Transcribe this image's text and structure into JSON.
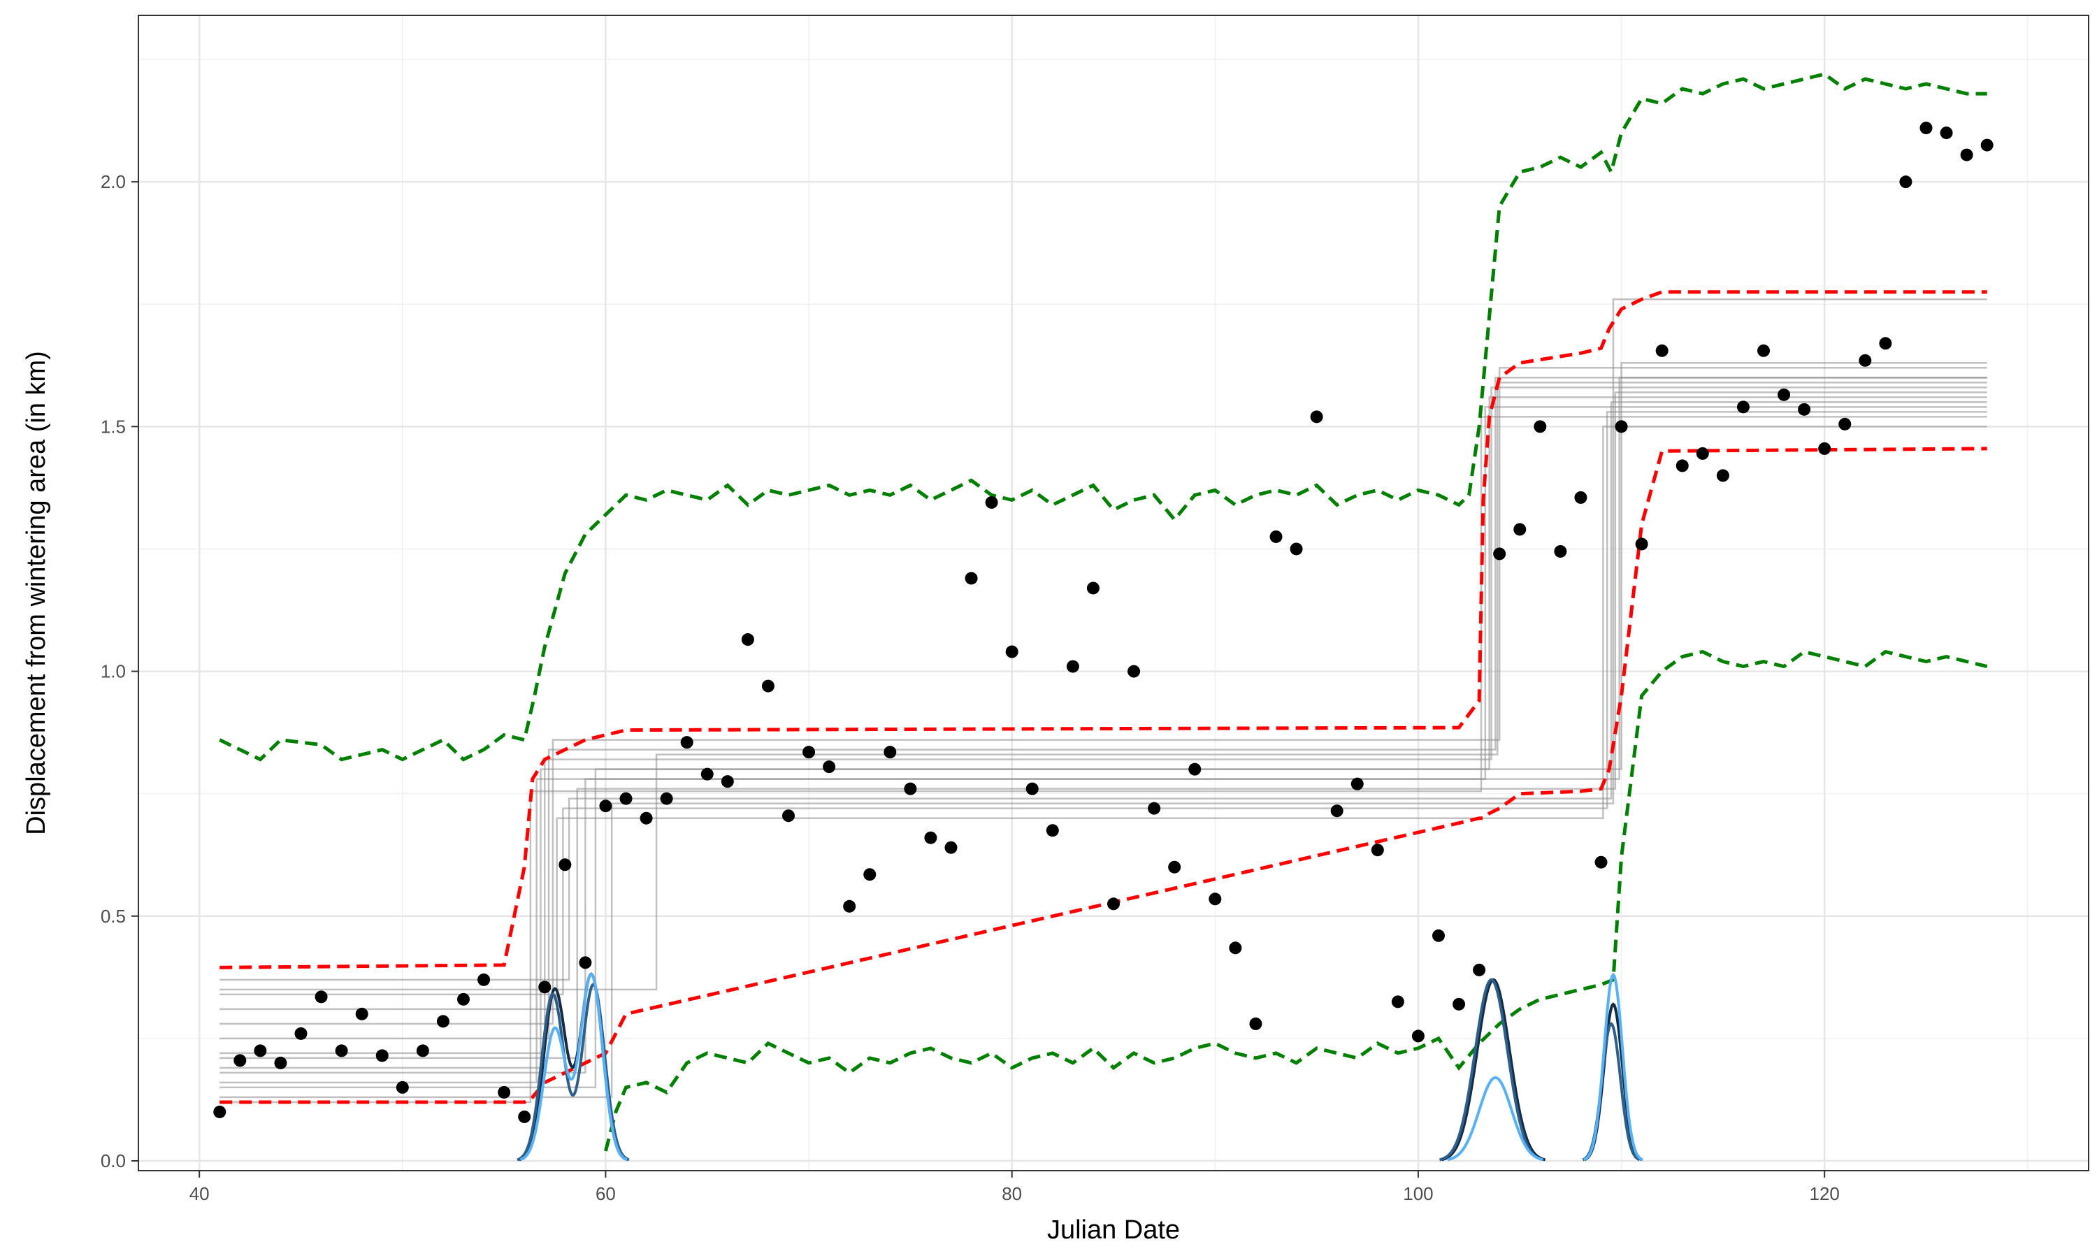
{
  "chart_data": {
    "type": "scatter",
    "xlabel": "Julian Date",
    "ylabel": "Displacement from wintering area (in km)",
    "xlim": [
      37,
      133
    ],
    "ylim": [
      -0.02,
      2.34
    ],
    "x_ticks": [
      40,
      60,
      80,
      100,
      120
    ],
    "y_ticks": [
      0.0,
      0.5,
      1.0,
      1.5,
      2.0
    ],
    "x_tick_labels": [
      "40",
      "60",
      "80",
      "100",
      "120"
    ],
    "y_tick_labels": [
      "0.0",
      "0.5",
      "1.0",
      "1.5",
      "2.0"
    ],
    "grid": true,
    "theme": "bw",
    "points": {
      "x": [
        41,
        42,
        43,
        44,
        45,
        46,
        47,
        48,
        49,
        50,
        51,
        52,
        53,
        54,
        55,
        56,
        57,
        58,
        59,
        60,
        61,
        62,
        63,
        64,
        65,
        66,
        67,
        68,
        69,
        70,
        71,
        72,
        73,
        74,
        75,
        76,
        77,
        78,
        79,
        80,
        81,
        82,
        83,
        84,
        85,
        86,
        87,
        88,
        89,
        90,
        91,
        92,
        93,
        94,
        95,
        96,
        97,
        98,
        99,
        100,
        101,
        102,
        103,
        104,
        105,
        106,
        107,
        108,
        109,
        110,
        111,
        112,
        113,
        114,
        115,
        116,
        117,
        118,
        119,
        120,
        121,
        122,
        123,
        124,
        125,
        126,
        127,
        128
      ],
      "y": [
        0.1,
        0.205,
        0.225,
        0.2,
        0.26,
        0.335,
        0.225,
        0.3,
        0.215,
        0.15,
        0.225,
        0.285,
        0.33,
        0.37,
        0.14,
        0.09,
        0.355,
        0.605,
        0.405,
        0.725,
        0.74,
        0.7,
        0.74,
        0.855,
        0.79,
        0.775,
        1.065,
        0.97,
        0.705,
        0.835,
        0.805,
        0.52,
        0.585,
        0.835,
        0.76,
        0.66,
        0.64,
        1.19,
        1.345,
        1.04,
        0.76,
        0.675,
        1.01,
        1.17,
        0.525,
        1.0,
        0.72,
        0.6,
        0.8,
        0.535,
        0.435,
        0.28,
        1.275,
        1.25,
        1.52,
        0.715,
        0.77,
        0.635,
        0.325,
        0.255,
        0.46,
        0.32,
        0.39,
        1.24,
        1.29,
        1.5,
        1.245,
        1.355,
        0.61,
        1.5,
        1.26,
        1.655,
        1.42,
        1.445,
        1.4,
        1.54,
        1.655,
        1.565,
        1.535,
        1.455,
        1.505,
        1.635,
        1.67,
        2.0,
        2.11,
        2.1,
        2.055,
        2.075
      ],
      "color": "#000000"
    },
    "step_fits": {
      "color": "#8c8c8c",
      "x_range": [
        41,
        128
      ],
      "lines": [
        [
          0.12,
          56.3,
          0.755,
          103.1,
          1.52
        ],
        [
          0.16,
          56.6,
          0.78,
          103.3,
          1.54
        ],
        [
          0.19,
          56.8,
          0.8,
          103.5,
          1.56
        ],
        [
          0.22,
          57.0,
          0.82,
          103.6,
          1.58
        ],
        [
          0.25,
          57.2,
          0.84,
          103.8,
          1.6
        ],
        [
          0.28,
          57.4,
          0.86,
          104.0,
          1.62
        ],
        [
          0.31,
          57.6,
          0.7,
          109.1,
          1.5
        ],
        [
          0.34,
          57.9,
          0.72,
          109.3,
          1.53
        ],
        [
          0.37,
          58.2,
          0.74,
          109.5,
          1.55
        ],
        [
          0.21,
          58.6,
          0.76,
          109.7,
          1.57
        ],
        [
          0.18,
          59.0,
          0.78,
          109.9,
          1.6
        ],
        [
          0.15,
          59.5,
          0.8,
          110.0,
          1.63
        ],
        [
          0.13,
          60.3,
          0.73,
          109.6,
          1.76
        ],
        [
          0.35,
          62.5,
          0.83,
          103.9,
          1.59
        ]
      ]
    },
    "red_band": {
      "color": "#ff0000",
      "x": [
        41,
        55,
        56,
        56.4,
        57,
        58,
        59,
        60,
        61,
        102,
        103,
        103.2,
        103.5,
        104,
        105,
        108,
        109,
        109.4,
        110,
        111,
        112,
        128
      ],
      "upper": [
        0.395,
        0.4,
        0.6,
        0.78,
        0.82,
        0.84,
        0.86,
        0.87,
        0.88,
        0.885,
        0.94,
        1.35,
        1.52,
        1.6,
        1.63,
        1.65,
        1.66,
        1.7,
        1.74,
        1.76,
        1.775,
        1.775
      ],
      "lower": [
        0.12,
        0.12,
        0.12,
        0.13,
        0.16,
        0.18,
        0.2,
        0.22,
        0.3,
        0.69,
        0.7,
        0.7,
        0.71,
        0.72,
        0.75,
        0.755,
        0.76,
        0.8,
        0.95,
        1.3,
        1.45,
        1.455
      ]
    },
    "green_band": {
      "color": "#008000",
      "upper": {
        "x": [
          41,
          43,
          44,
          46,
          47,
          48,
          49,
          50,
          51,
          52,
          53,
          54,
          55,
          56,
          56.5,
          57,
          58,
          59,
          60,
          61,
          62,
          63,
          64,
          65,
          66,
          67,
          68,
          69,
          70,
          71,
          72,
          73,
          74,
          75,
          76,
          77,
          78,
          79,
          80,
          81,
          82,
          83,
          84,
          85,
          86,
          87,
          88,
          89,
          90,
          91,
          92,
          93,
          94,
          95,
          96,
          97,
          98,
          99,
          100,
          101,
          102,
          102.5,
          103,
          104,
          105,
          106,
          107,
          108,
          109,
          109.5,
          110,
          111,
          112,
          113,
          114,
          115,
          116,
          117,
          118,
          119,
          120,
          121,
          122,
          123,
          124,
          125,
          126,
          127,
          128
        ],
        "y": [
          0.86,
          0.82,
          0.86,
          0.85,
          0.82,
          0.83,
          0.84,
          0.82,
          0.84,
          0.86,
          0.82,
          0.84,
          0.87,
          0.86,
          0.95,
          1.05,
          1.2,
          1.28,
          1.32,
          1.36,
          1.35,
          1.37,
          1.36,
          1.35,
          1.38,
          1.34,
          1.37,
          1.36,
          1.37,
          1.38,
          1.36,
          1.37,
          1.36,
          1.38,
          1.35,
          1.37,
          1.39,
          1.36,
          1.35,
          1.37,
          1.34,
          1.36,
          1.38,
          1.33,
          1.35,
          1.36,
          1.31,
          1.36,
          1.37,
          1.34,
          1.36,
          1.37,
          1.36,
          1.38,
          1.34,
          1.36,
          1.37,
          1.35,
          1.37,
          1.36,
          1.34,
          1.36,
          1.5,
          1.95,
          2.02,
          2.03,
          2.05,
          2.03,
          2.06,
          2.02,
          2.1,
          2.17,
          2.16,
          2.19,
          2.18,
          2.2,
          2.21,
          2.19,
          2.2,
          2.21,
          2.22,
          2.19,
          2.21,
          2.2,
          2.19,
          2.2,
          2.19,
          2.18,
          2.18
        ]
      },
      "lower": {
        "x": [
          60,
          60.5,
          61,
          62,
          63,
          64,
          65,
          66,
          67,
          68,
          69,
          70,
          71,
          72,
          73,
          74,
          75,
          76,
          77,
          78,
          79,
          80,
          81,
          82,
          83,
          84,
          85,
          86,
          87,
          88,
          89,
          90,
          91,
          92,
          93,
          94,
          95,
          96,
          97,
          98,
          99,
          100,
          101,
          102,
          103,
          104,
          105,
          106,
          107,
          108,
          109,
          109.6,
          110,
          111,
          112,
          113,
          114,
          115,
          116,
          117,
          118,
          119,
          120,
          121,
          122,
          123,
          124,
          125,
          126,
          127,
          128
        ],
        "y": [
          0.02,
          0.1,
          0.15,
          0.16,
          0.14,
          0.2,
          0.22,
          0.21,
          0.2,
          0.24,
          0.22,
          0.2,
          0.21,
          0.18,
          0.21,
          0.2,
          0.22,
          0.23,
          0.21,
          0.2,
          0.22,
          0.19,
          0.21,
          0.22,
          0.2,
          0.23,
          0.19,
          0.22,
          0.2,
          0.21,
          0.23,
          0.24,
          0.22,
          0.21,
          0.22,
          0.2,
          0.23,
          0.22,
          0.21,
          0.24,
          0.22,
          0.23,
          0.25,
          0.19,
          0.24,
          0.28,
          0.31,
          0.33,
          0.34,
          0.35,
          0.36,
          0.37,
          0.62,
          0.95,
          1.0,
          1.03,
          1.04,
          1.02,
          1.01,
          1.02,
          1.01,
          1.04,
          1.03,
          1.02,
          1.01,
          1.04,
          1.03,
          1.02,
          1.03,
          1.02,
          1.01
        ]
      }
    },
    "density_curves": [
      {
        "color": "#132b43",
        "peaks": [
          [
            57.5,
            0.35,
            0.55
          ],
          [
            59.3,
            0.38,
            0.55
          ],
          [
            103.7,
            0.37,
            0.8
          ],
          [
            109.6,
            0.32,
            0.45
          ]
        ]
      },
      {
        "color": "#2e5f8a",
        "peaks": [
          [
            57.4,
            0.34,
            0.55
          ],
          [
            59.4,
            0.36,
            0.55
          ],
          [
            103.6,
            0.37,
            0.8
          ],
          [
            109.5,
            0.28,
            0.45
          ]
        ]
      },
      {
        "color": "#56b1f7",
        "peaks": [
          [
            57.5,
            0.27,
            0.55
          ],
          [
            59.3,
            0.38,
            0.55
          ],
          [
            103.8,
            0.17,
            0.8
          ],
          [
            109.6,
            0.38,
            0.45
          ]
        ]
      }
    ]
  }
}
